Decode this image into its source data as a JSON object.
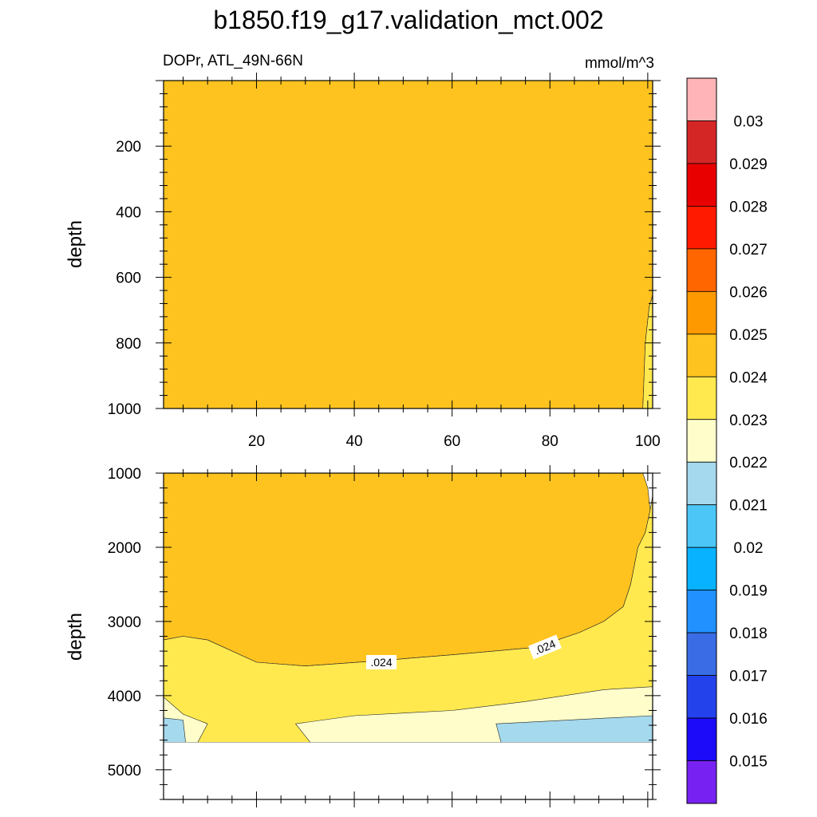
{
  "title": "b1850.f19_g17.validation_mct.002",
  "top_left_label": "DOPr, ATL_49N-66N",
  "top_right_label": "mmol/m^3",
  "chart_data": [
    {
      "type": "heatmap",
      "panel": "upper",
      "ylabel": "depth",
      "xlim": [
        1,
        101
      ],
      "ylim": [
        1000,
        0
      ],
      "x_ticks": [
        20,
        40,
        60,
        80,
        100
      ],
      "y_ticks": [
        200,
        400,
        600,
        800,
        1000
      ],
      "fill_color": "#FFC31F",
      "regions": [
        {
          "color": "#FFC31F",
          "level": "0.024-0.025",
          "polygon": [
            [
              1,
              0
            ],
            [
              101,
              0
            ],
            [
              101,
              655
            ],
            [
              100.3,
              690
            ],
            [
              99.5,
              800
            ],
            [
              99,
              1000
            ],
            [
              1,
              1000
            ]
          ]
        },
        {
          "color": "#FFE94F",
          "level": "0.023-0.024",
          "polygon": [
            [
              101,
              655
            ],
            [
              100.3,
              690
            ],
            [
              99.5,
              800
            ],
            [
              99,
              1000
            ],
            [
              101,
              1000
            ]
          ]
        }
      ],
      "grid": false
    },
    {
      "type": "heatmap",
      "panel": "lower",
      "ylabel": "depth",
      "xlim": [
        1,
        101
      ],
      "ylim": [
        5400,
        1000
      ],
      "y_ticks": [
        1000,
        2000,
        3000,
        4000,
        5000
      ],
      "data_bottom": 4630,
      "contour_labels": [
        ".024",
        ".024"
      ],
      "regions": [
        {
          "color": "#FFC31F",
          "level": "0.024-0.025",
          "polygon": [
            [
              1,
              1000
            ],
            [
              99,
              1000
            ],
            [
              100,
              1200
            ],
            [
              100.5,
              1500
            ],
            [
              99.5,
              1800
            ],
            [
              98,
              2000
            ],
            [
              96.5,
              2500
            ],
            [
              95,
              2800
            ],
            [
              91,
              3000
            ],
            [
              86,
              3150
            ],
            [
              77,
              3350
            ],
            [
              60,
              3450
            ],
            [
              45,
              3530
            ],
            [
              30,
              3600
            ],
            [
              20,
              3550
            ],
            [
              10,
              3250
            ],
            [
              5,
              3200
            ],
            [
              1,
              3250
            ]
          ]
        },
        {
          "color": "#FFE94F",
          "level": "0.023-0.024",
          "polygon": [
            [
              1,
              3250
            ],
            [
              5,
              3200
            ],
            [
              10,
              3250
            ],
            [
              20,
              3550
            ],
            [
              30,
              3600
            ],
            [
              45,
              3530
            ],
            [
              60,
              3450
            ],
            [
              77,
              3350
            ],
            [
              86,
              3150
            ],
            [
              91,
              3000
            ],
            [
              95,
              2800
            ],
            [
              96.5,
              2500
            ],
            [
              98,
              2000
            ],
            [
              99.5,
              1800
            ],
            [
              100.5,
              1500
            ],
            [
              101,
              1300
            ],
            [
              101,
              4630
            ],
            [
              1,
              4630
            ]
          ]
        },
        {
          "color": "#FFFECB",
          "level": "0.022-0.023",
          "polygon": [
            [
              101,
              3880
            ],
            [
              91,
              3920
            ],
            [
              75,
              4080
            ],
            [
              60,
              4200
            ],
            [
              40,
              4270
            ],
            [
              28,
              4380
            ],
            [
              31,
              4630
            ],
            [
              101,
              4630
            ]
          ]
        },
        {
          "color": "#FFFECB",
          "level": "0.022-0.023",
          "polygon": [
            [
              1,
              4020
            ],
            [
              5,
              4250
            ],
            [
              10,
              4380
            ],
            [
              8,
              4630
            ],
            [
              1,
              4630
            ]
          ]
        },
        {
          "color": "#A5D9ED",
          "level": "0.021-0.022",
          "polygon": [
            [
              1,
              4300
            ],
            [
              5,
              4330
            ],
            [
              5.5,
              4630
            ],
            [
              1,
              4630
            ]
          ]
        },
        {
          "color": "#A5D9ED",
          "level": "0.021-0.022",
          "polygon": [
            [
              69,
              4380
            ],
            [
              101,
              4270
            ],
            [
              101,
              4630
            ],
            [
              70,
              4630
            ]
          ]
        }
      ],
      "grid": false
    }
  ],
  "colorbar": {
    "levels": [
      "0.03",
      "0.029",
      "0.028",
      "0.027",
      "0.026",
      "0.025",
      "0.024",
      "0.023",
      "0.022",
      "0.021",
      "0.02",
      "0.019",
      "0.018",
      "0.017",
      "0.016",
      "0.015"
    ],
    "colors": [
      "#FFB5B8",
      "#D52626",
      "#E80000",
      "#FF1A00",
      "#FF6600",
      "#FF9900",
      "#FFC31F",
      "#FFE94F",
      "#FFFECB",
      "#A5D9ED",
      "#4CC6F6",
      "#09B2FF",
      "#2091FF",
      "#3A6DE5",
      "#2442EB",
      "#1C0BF9",
      "#7722F2"
    ]
  }
}
